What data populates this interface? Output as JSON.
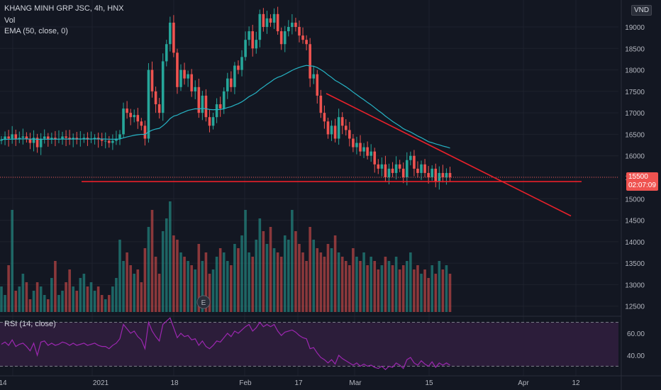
{
  "header": {
    "symbol_line": "KHANG MINH GRP JSC, 4h, HNX",
    "vol_label": "Vol",
    "ema_label": "EMA (50, close, 0)",
    "rsi_label": "RSI (14, close)"
  },
  "currency": "VND",
  "event_marker": "E",
  "last_price": "15500",
  "countdown": "02:07:09",
  "colors": {
    "background": "#131722",
    "up": "#26a69a",
    "down": "#ef5350",
    "ema": "#26b3c4",
    "trendline": "#e8202a",
    "rsi": "#9c27b0",
    "rsi_band": "#2c1d3a"
  },
  "chart_data": [
    {
      "type": "candlestick",
      "price_axis_labels": [
        "19000",
        "18500",
        "18000",
        "17500",
        "17000",
        "16500",
        "16000",
        "15500",
        "15000",
        "14500",
        "14000",
        "13500",
        "13000",
        "12500"
      ],
      "time_axis_labels": [
        "14",
        "2021",
        "18",
        "Feb",
        "17",
        "Mar",
        "15",
        "Apr",
        "12"
      ],
      "ylim": [
        12250,
        19500
      ],
      "close": [
        16380,
        16450,
        16400,
        16500,
        16400,
        16420,
        16450,
        16400,
        16300,
        16420,
        16200,
        16400,
        16450,
        16380,
        16420,
        16380,
        16400,
        16450,
        16420,
        16380,
        16420,
        16380,
        16400,
        16420,
        16380,
        16400,
        16420,
        16380,
        16350,
        16350,
        16300,
        16350,
        16400,
        16500,
        17100,
        17000,
        16900,
        16950,
        16800,
        16700,
        16400,
        18000,
        17500,
        17200,
        17000,
        18200,
        18600,
        19100,
        18400,
        17600,
        18000,
        17800,
        17900,
        17500,
        17600,
        17000,
        17400,
        16900,
        16700,
        16900,
        17200,
        17100,
        17500,
        17800,
        17600,
        18100,
        18000,
        18300,
        18700,
        18900,
        18500,
        18700,
        19300,
        19000,
        19200,
        19100,
        19300,
        18900,
        18600,
        18900,
        19000,
        19100,
        19000,
        18800,
        18700,
        18600,
        17800,
        17900,
        17400,
        17000,
        16800,
        16500,
        16700,
        16400,
        16900,
        16700,
        16600,
        16400,
        16200,
        16300,
        16100,
        16200,
        16000,
        16100,
        15800,
        15700,
        15800,
        15500,
        15700,
        15600,
        15800,
        15700,
        15500,
        15900,
        16000,
        15700,
        15600,
        15800,
        15600,
        15500,
        15700,
        15400,
        15600,
        15500,
        15600,
        15500
      ],
      "ema": [
        16380,
        16383,
        16384,
        16388,
        16389,
        16391,
        16393,
        16394,
        16390,
        16391,
        16383,
        16384,
        16386,
        16386,
        16387,
        16387,
        16388,
        16390,
        16391,
        16390,
        16391,
        16391,
        16391,
        16392,
        16392,
        16392,
        16393,
        16393,
        16391,
        16389,
        16386,
        16385,
        16385,
        16390,
        16417,
        16440,
        16458,
        16478,
        16491,
        16500,
        16497,
        16558,
        16597,
        16623,
        16639,
        16700,
        16775,
        16866,
        16923,
        16947,
        16989,
        17022,
        17057,
        17075,
        17095,
        17091,
        17103,
        17095,
        17079,
        17072,
        17077,
        17078,
        17095,
        17123,
        17143,
        17181,
        17214,
        17257,
        17314,
        17377,
        17421,
        17471,
        17544,
        17602,
        17665,
        17721,
        17783,
        17826,
        17856,
        17898,
        17942,
        17989,
        18028,
        18058,
        18084,
        18105,
        18093,
        18086,
        18054,
        18006,
        17951,
        17883,
        17825,
        17756,
        17710,
        17659,
        17606,
        17548,
        17482,
        17424,
        17361,
        17305,
        17243,
        17187,
        17121,
        17054,
        16994,
        16924,
        16863,
        16800,
        16747,
        16692,
        16632,
        16590,
        16554,
        16508,
        16460,
        16422,
        16376,
        16329,
        16305,
        16277,
        16254,
        16228,
        16206,
        16180
      ],
      "volume": [
        30,
        20,
        55,
        120,
        25,
        30,
        45,
        35,
        15,
        25,
        35,
        30,
        20,
        15,
        40,
        60,
        20,
        25,
        35,
        50,
        30,
        25,
        40,
        45,
        30,
        35,
        25,
        30,
        20,
        15,
        20,
        30,
        40,
        85,
        60,
        70,
        55,
        45,
        50,
        35,
        75,
        100,
        120,
        65,
        45,
        95,
        110,
        130,
        90,
        85,
        70,
        65,
        60,
        55,
        50,
        80,
        60,
        70,
        45,
        50,
        65,
        75,
        70,
        60,
        55,
        80,
        75,
        90,
        120,
        70,
        65,
        85,
        110,
        95,
        80,
        100,
        75,
        70,
        65,
        90,
        85,
        120,
        95,
        80,
        70,
        60,
        100,
        85,
        75,
        70,
        65,
        80,
        75,
        90,
        70,
        65,
        60,
        55,
        75,
        65,
        60,
        70,
        55,
        65,
        60,
        50,
        55,
        65,
        60,
        55,
        65,
        50,
        55,
        60,
        70,
        50,
        55,
        45,
        50,
        40,
        55,
        45,
        60,
        50,
        55,
        45
      ],
      "volume_ylim": [
        0,
        140
      ],
      "downtrend_line": {
        "x": [
          "2021-02-21",
          "2021-04-12"
        ],
        "y": [
          17450,
          14600
        ]
      },
      "support_line": 15400,
      "last_price_line": 15500
    },
    {
      "type": "line",
      "name": "RSI (14, close)",
      "yticks": [
        "60.00",
        "40.00"
      ],
      "ylim": [
        25,
        76
      ],
      "band": [
        30,
        70
      ],
      "values": [
        50,
        52,
        49,
        54,
        48,
        50,
        51,
        48,
        44,
        51,
        40,
        52,
        53,
        49,
        51,
        49,
        50,
        52,
        51,
        49,
        51,
        49,
        50,
        51,
        49,
        50,
        51,
        49,
        48,
        48,
        46,
        49,
        51,
        55,
        68,
        64,
        60,
        62,
        57,
        54,
        46,
        70,
        62,
        57,
        53,
        68,
        71,
        74,
        65,
        56,
        60,
        57,
        58,
        54,
        55,
        49,
        53,
        48,
        46,
        49,
        53,
        52,
        56,
        60,
        57,
        62,
        60,
        63,
        66,
        68,
        62,
        65,
        70,
        66,
        68,
        66,
        68,
        62,
        58,
        61,
        62,
        63,
        61,
        58,
        56,
        55,
        46,
        47,
        42,
        38,
        36,
        33,
        36,
        32,
        40,
        37,
        35,
        33,
        31,
        33,
        30,
        32,
        30,
        31,
        29,
        28,
        30,
        27,
        30,
        29,
        33,
        31,
        28,
        36,
        38,
        33,
        31,
        35,
        32,
        30,
        34,
        29,
        33,
        31,
        33,
        31
      ]
    }
  ]
}
